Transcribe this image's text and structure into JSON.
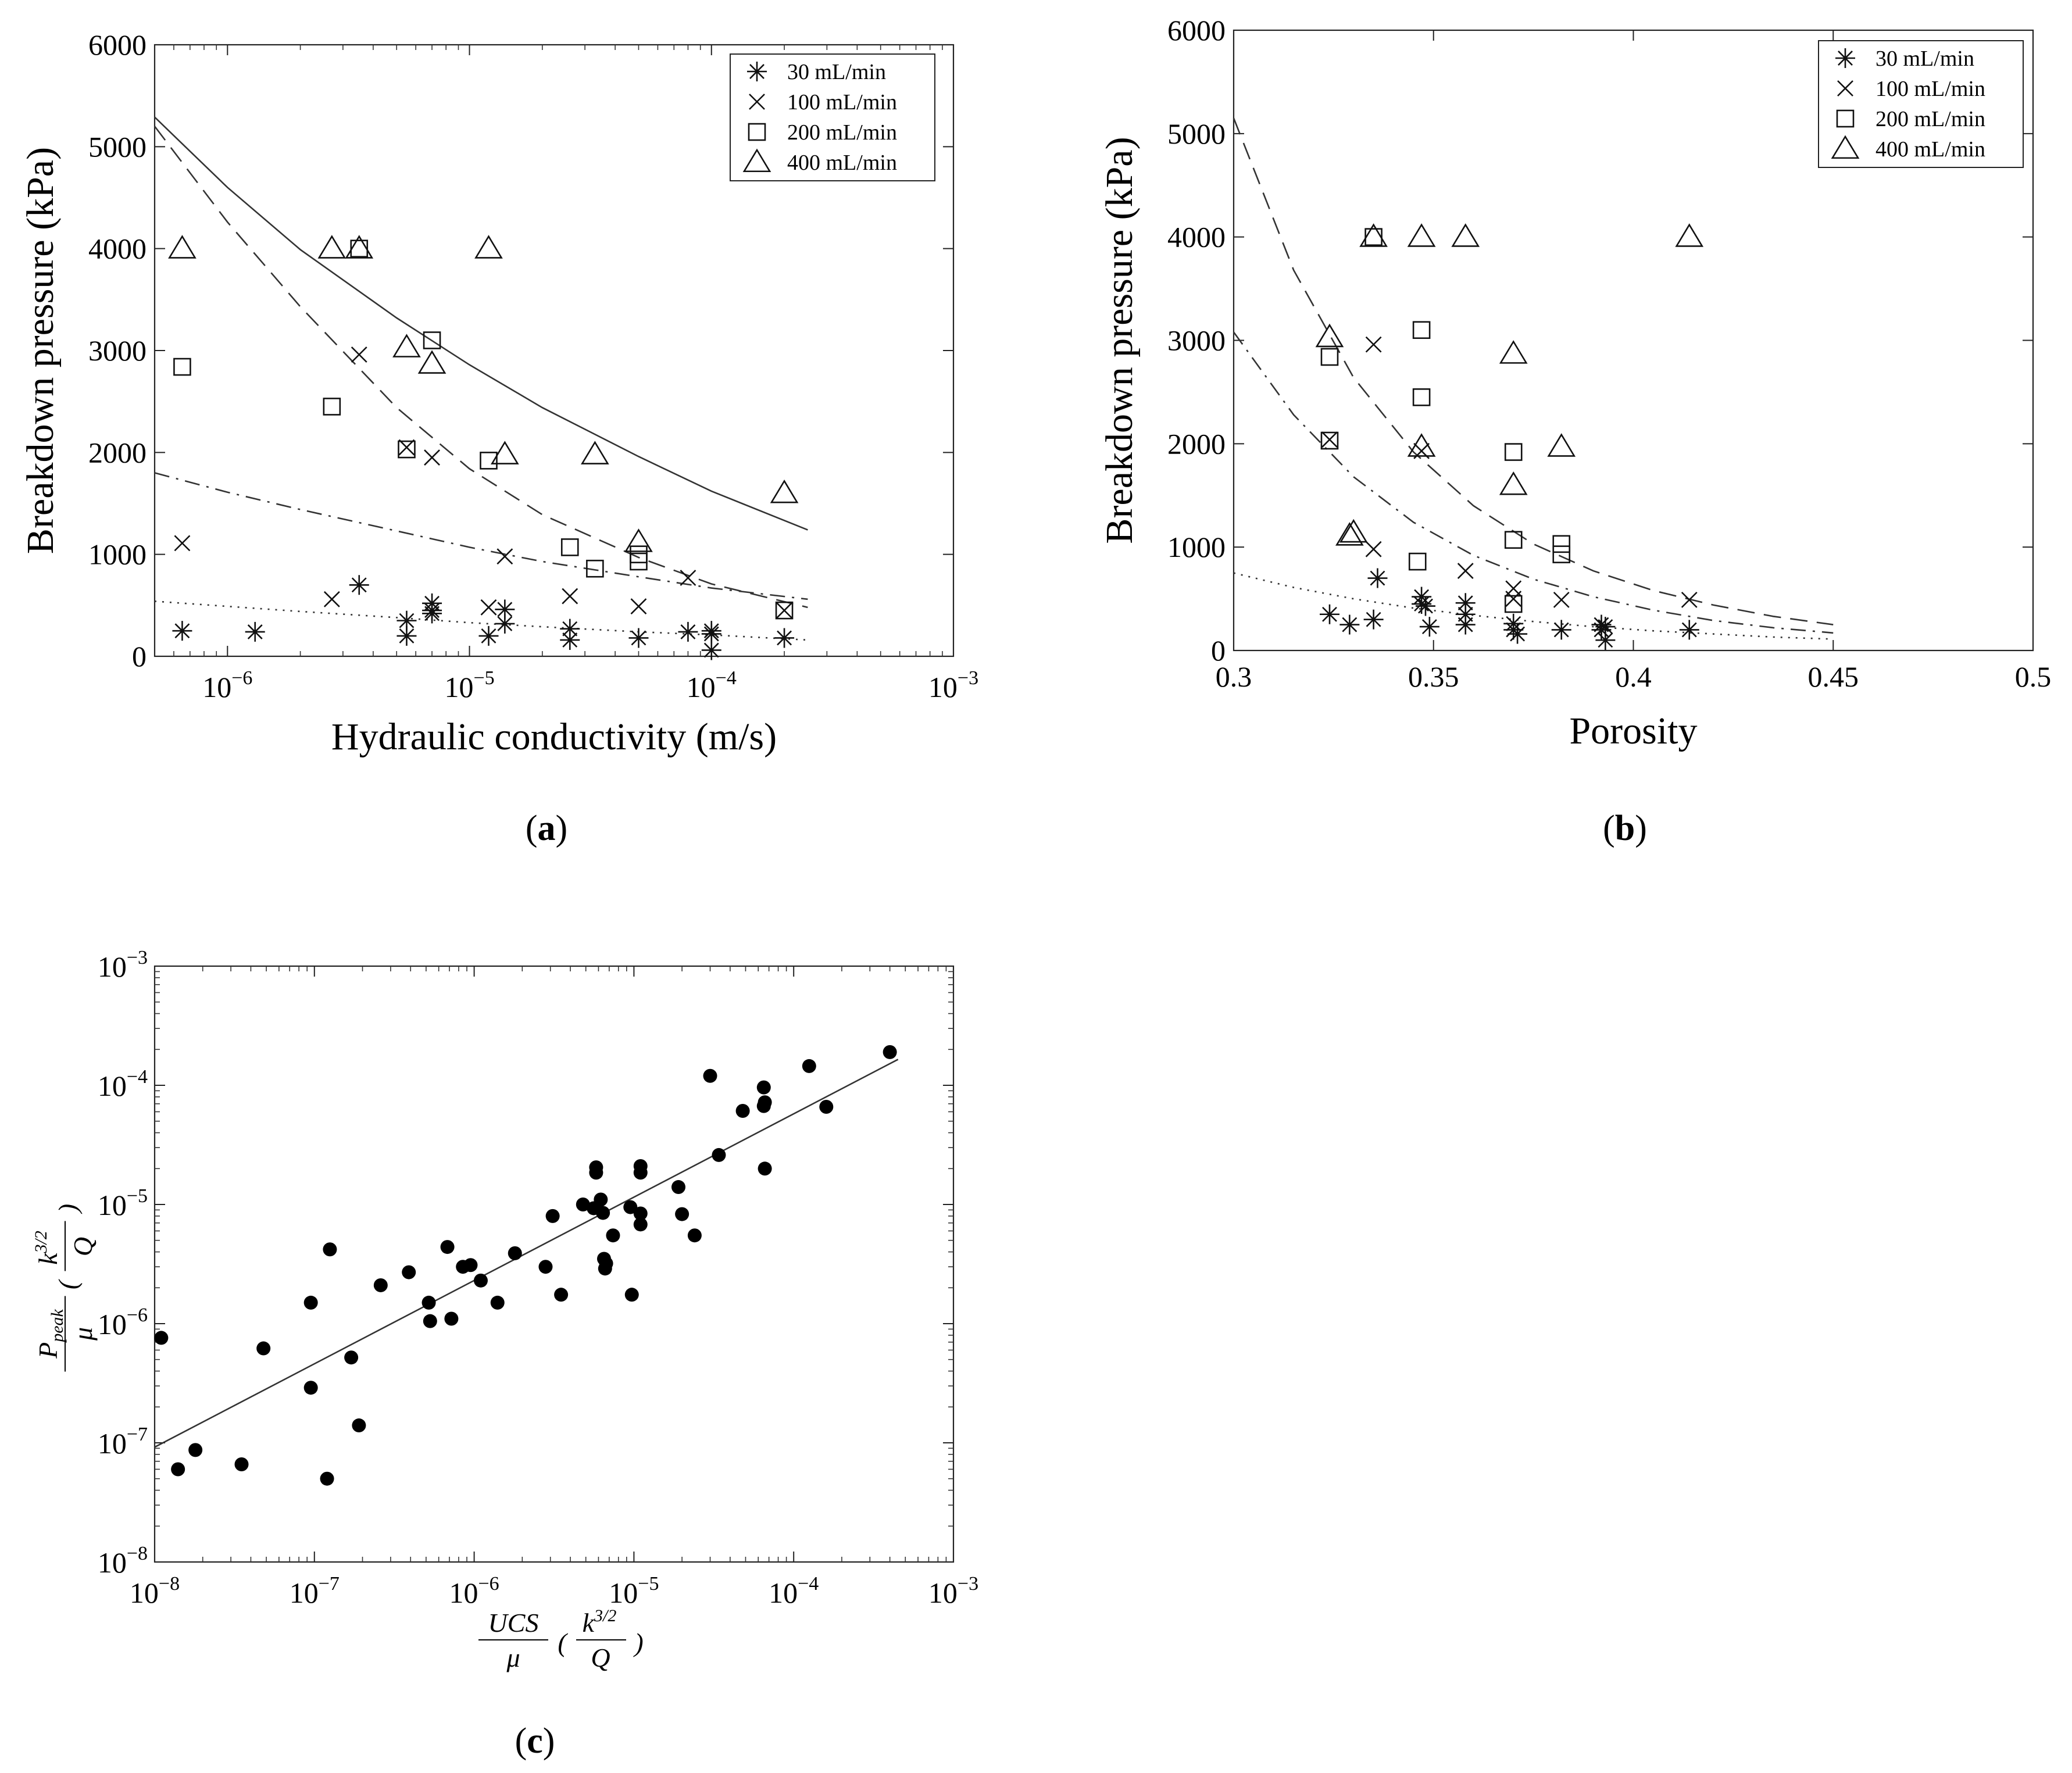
{
  "figure": {
    "panel_labels": {
      "a": "a",
      "b": "b",
      "c": "c"
    }
  },
  "chart_data": [
    {
      "id": "a",
      "type": "scatter",
      "xscale": "log",
      "xlim": [
        5e-07,
        0.001
      ],
      "ylim": [
        0,
        6000
      ],
      "xticks": [
        1e-06,
        1e-05,
        0.0001,
        0.001
      ],
      "xtick_labels": [
        {
          "base": "10",
          "exp": "−6"
        },
        {
          "base": "10",
          "exp": "−5"
        },
        {
          "base": "10",
          "exp": "−4"
        },
        {
          "base": "10",
          "exp": "−3"
        }
      ],
      "yticks": [
        0,
        1000,
        2000,
        3000,
        4000,
        5000,
        6000
      ],
      "ytick_labels": [
        "0",
        "1000",
        "2000",
        "3000",
        "4000",
        "5000",
        "6000"
      ],
      "xlabel": "Hydraulic conductivity (m/s)",
      "ylabel": "Breakdown pressure (kPa)",
      "legend_position": "top-right",
      "series": [
        {
          "name": "30 mL/min",
          "marker": "asterisk",
          "points": [
            [
              6.5e-07,
              250
            ],
            [
              1.3e-06,
              240
            ],
            [
              3.5e-06,
              700
            ],
            [
              5.5e-06,
              350
            ],
            [
              5.5e-06,
              200
            ],
            [
              7e-06,
              450
            ],
            [
              7e-06,
              520
            ],
            [
              7e-06,
              420
            ],
            [
              1.2e-05,
              200
            ],
            [
              1.4e-05,
              320
            ],
            [
              1.4e-05,
              460
            ],
            [
              2.6e-05,
              270
            ],
            [
              2.6e-05,
              160
            ],
            [
              5e-05,
              180
            ],
            [
              8e-05,
              240
            ],
            [
              0.0001,
              220
            ],
            [
              0.0001,
              250
            ],
            [
              0.0001,
              60
            ],
            [
              0.0002,
              180
            ]
          ]
        },
        {
          "name": "100 mL/min",
          "marker": "x",
          "points": [
            [
              6.5e-07,
              1110
            ],
            [
              2.7e-06,
              560
            ],
            [
              3.5e-06,
              2960
            ],
            [
              5.5e-06,
              2050
            ],
            [
              7e-06,
              1950
            ],
            [
              1.2e-05,
              480
            ],
            [
              1.4e-05,
              980
            ],
            [
              2.6e-05,
              590
            ],
            [
              5e-05,
              490
            ],
            [
              8e-05,
              770
            ],
            [
              0.0002,
              450
            ]
          ]
        },
        {
          "name": "200 mL/min",
          "marker": "square",
          "points": [
            [
              6.5e-07,
              2840
            ],
            [
              2.7e-06,
              2450
            ],
            [
              3.5e-06,
              4000
            ],
            [
              5.5e-06,
              2030
            ],
            [
              7e-06,
              3100
            ],
            [
              1.2e-05,
              1920
            ],
            [
              2.6e-05,
              1070
            ],
            [
              3.3e-05,
              860
            ],
            [
              5e-05,
              1000
            ],
            [
              5e-05,
              930
            ],
            [
              0.0002,
              450
            ]
          ]
        },
        {
          "name": "400 mL/min",
          "marker": "triangle",
          "points": [
            [
              6.5e-07,
              4000
            ],
            [
              2.7e-06,
              4000
            ],
            [
              3.5e-06,
              4000
            ],
            [
              5.5e-06,
              3030
            ],
            [
              7e-06,
              2870
            ],
            [
              1.2e-05,
              4000
            ],
            [
              1.4e-05,
              1980
            ],
            [
              3.3e-05,
              1980
            ],
            [
              5e-05,
              1120
            ],
            [
              0.0002,
              1600
            ]
          ]
        }
      ],
      "fits": [
        {
          "style": "solid",
          "x": [
            5e-07,
            1e-06,
            2e-06,
            5e-06,
            1e-05,
            2e-05,
            5e-05,
            0.0001,
            0.00025
          ],
          "y": [
            5290,
            4600,
            3990,
            3320,
            2860,
            2440,
            1960,
            1620,
            1240
          ]
        },
        {
          "style": "dashed",
          "x": [
            5e-07,
            1e-06,
            2e-06,
            5e-06,
            1e-05,
            2e-05,
            5e-05,
            0.0001,
            0.00025
          ],
          "y": [
            5200,
            4260,
            3430,
            2440,
            1840,
            1390,
            970,
            710,
            480
          ]
        },
        {
          "style": "dashdot",
          "x": [
            5e-07,
            1e-06,
            2e-06,
            5e-06,
            1e-05,
            2e-05,
            5e-05,
            0.0001,
            0.00025
          ],
          "y": [
            1800,
            1610,
            1440,
            1230,
            1070,
            930,
            780,
            670,
            560
          ]
        },
        {
          "style": "dotted",
          "x": [
            5e-07,
            1e-06,
            2e-06,
            5e-06,
            1e-05,
            2e-05,
            5e-05,
            0.0001,
            0.00025
          ],
          "y": [
            540,
            490,
            440,
            380,
            330,
            290,
            240,
            210,
            160
          ]
        }
      ]
    },
    {
      "id": "b",
      "type": "scatter",
      "xscale": "linear",
      "xlim": [
        0.3,
        0.5
      ],
      "ylim": [
        0,
        6000
      ],
      "xticks": [
        0.3,
        0.35,
        0.4,
        0.45,
        0.5
      ],
      "xtick_labels": [
        "0.3",
        "0.35",
        "0.4",
        "0.45",
        "0.5"
      ],
      "yticks": [
        0,
        1000,
        2000,
        3000,
        4000,
        5000,
        6000
      ],
      "ytick_labels": [
        "0",
        "1000",
        "2000",
        "3000",
        "4000",
        "5000",
        "6000"
      ],
      "xlabel": "Porosity",
      "ylabel": "Breakdown pressure (kPa)",
      "legend_position": "top-right",
      "series": [
        {
          "name": "30 mL/min",
          "marker": "asterisk",
          "points": [
            [
              0.324,
              350
            ],
            [
              0.329,
              250
            ],
            [
              0.335,
              300
            ],
            [
              0.336,
              700
            ],
            [
              0.347,
              450
            ],
            [
              0.347,
              520
            ],
            [
              0.348,
              430
            ],
            [
              0.349,
              230
            ],
            [
              0.358,
              250
            ],
            [
              0.358,
              350
            ],
            [
              0.358,
              460
            ],
            [
              0.37,
              200
            ],
            [
              0.37,
              260
            ],
            [
              0.371,
              160
            ],
            [
              0.382,
              200
            ],
            [
              0.392,
              200
            ],
            [
              0.392,
              250
            ],
            [
              0.393,
              100
            ],
            [
              0.393,
              230
            ],
            [
              0.414,
              200
            ]
          ]
        },
        {
          "name": "100 mL/min",
          "marker": "x",
          "points": [
            [
              0.324,
              2040
            ],
            [
              0.335,
              2960
            ],
            [
              0.335,
              980
            ],
            [
              0.347,
              1930
            ],
            [
              0.358,
              770
            ],
            [
              0.37,
              600
            ],
            [
              0.37,
              500
            ],
            [
              0.382,
              490
            ],
            [
              0.414,
              490
            ]
          ]
        },
        {
          "name": "200 mL/min",
          "marker": "square",
          "points": [
            [
              0.324,
              2840
            ],
            [
              0.324,
              2030
            ],
            [
              0.335,
              4000
            ],
            [
              0.346,
              860
            ],
            [
              0.347,
              2450
            ],
            [
              0.347,
              3100
            ],
            [
              0.37,
              1920
            ],
            [
              0.37,
              1070
            ],
            [
              0.37,
              450
            ],
            [
              0.382,
              930
            ],
            [
              0.382,
              1030
            ]
          ]
        },
        {
          "name": "400 mL/min",
          "marker": "triangle",
          "points": [
            [
              0.324,
              3030
            ],
            [
              0.329,
              1110
            ],
            [
              0.33,
              1140
            ],
            [
              0.335,
              4000
            ],
            [
              0.347,
              4000
            ],
            [
              0.347,
              1970
            ],
            [
              0.358,
              4000
            ],
            [
              0.37,
              2870
            ],
            [
              0.37,
              1600
            ],
            [
              0.382,
              1970
            ],
            [
              0.414,
              4000
            ]
          ]
        }
      ],
      "fits": [
        {
          "style": "dashed",
          "x": [
            0.3,
            0.315,
            0.33,
            0.345,
            0.36,
            0.375,
            0.39,
            0.405,
            0.42,
            0.435,
            0.45
          ],
          "y": [
            5150,
            3680,
            2640,
            1920,
            1400,
            1030,
            770,
            580,
            440,
            330,
            250
          ]
        },
        {
          "style": "dashdot",
          "x": [
            0.3,
            0.315,
            0.33,
            0.345,
            0.36,
            0.375,
            0.39,
            0.405,
            0.42,
            0.435,
            0.45
          ],
          "y": [
            3080,
            2280,
            1680,
            1240,
            920,
            690,
            520,
            390,
            290,
            220,
            170
          ]
        },
        {
          "style": "dotted",
          "x": [
            0.3,
            0.315,
            0.33,
            0.345,
            0.36,
            0.375,
            0.39,
            0.405,
            0.42,
            0.435,
            0.45
          ],
          "y": [
            750,
            610,
            500,
            410,
            340,
            280,
            230,
            190,
            160,
            130,
            110
          ]
        }
      ]
    },
    {
      "id": "c",
      "type": "scatter",
      "xscale": "log",
      "yscale": "log",
      "xlim": [
        1e-08,
        0.001
      ],
      "ylim": [
        1e-08,
        0.001
      ],
      "xticks": [
        1e-08,
        1e-07,
        1e-06,
        1e-05,
        0.0001,
        0.001
      ],
      "xtick_labels": [
        {
          "base": "10",
          "exp": "−8"
        },
        {
          "base": "10",
          "exp": "−7"
        },
        {
          "base": "10",
          "exp": "−6"
        },
        {
          "base": "10",
          "exp": "−5"
        },
        {
          "base": "10",
          "exp": "−4"
        },
        {
          "base": "10",
          "exp": "−3"
        }
      ],
      "yticks": [
        1e-08,
        1e-07,
        1e-06,
        1e-05,
        0.0001,
        0.001
      ],
      "ytick_labels": [
        {
          "base": "10",
          "exp": "−8"
        },
        {
          "base": "10",
          "exp": "−7"
        },
        {
          "base": "10",
          "exp": "−6"
        },
        {
          "base": "10",
          "exp": "−5"
        },
        {
          "base": "10",
          "exp": "−4"
        },
        {
          "base": "10",
          "exp": "−3"
        }
      ],
      "xlabel": {
        "num": "UCS",
        "den": "μ",
        "pnum": "k",
        "pexp": "3/2",
        "pden": "Q"
      },
      "ylabel": {
        "num": "P",
        "numsub": "peak",
        "den": "μ",
        "pnum": "k",
        "pexp": "3/2",
        "pden": "Q"
      },
      "points": [
        [
          1.1e-08,
          7.6e-07
        ],
        [
          1.4e-08,
          6e-08
        ],
        [
          1.8e-08,
          8.7e-08
        ],
        [
          3.5e-08,
          6.6e-08
        ],
        [
          4.8e-08,
          6.2e-07
        ],
        [
          9.5e-08,
          1.5e-06
        ],
        [
          9.5e-08,
          2.9e-07
        ],
        [
          1.2e-07,
          5e-08
        ],
        [
          1.25e-07,
          4.2e-06
        ],
        [
          1.7e-07,
          5.2e-07
        ],
        [
          1.9e-07,
          1.4e-07
        ],
        [
          2.6e-07,
          2.1e-06
        ],
        [
          3.9e-07,
          2.7e-06
        ],
        [
          5.2e-07,
          1.5e-06
        ],
        [
          5.3e-07,
          1.05e-06
        ],
        [
          6.8e-07,
          4.4e-06
        ],
        [
          7.2e-07,
          1.1e-06
        ],
        [
          8.5e-07,
          3e-06
        ],
        [
          9.5e-07,
          3.1e-06
        ],
        [
          1.1e-06,
          2.3e-06
        ],
        [
          1.4e-06,
          1.5e-06
        ],
        [
          1.8e-06,
          3.9e-06
        ],
        [
          2.8e-06,
          3e-06
        ],
        [
          3.1e-06,
          8e-06
        ],
        [
          3.5e-06,
          1.75e-06
        ],
        [
          4.8e-06,
          1e-05
        ],
        [
          5.6e-06,
          9.3e-06
        ],
        [
          5.8e-06,
          2.05e-05
        ],
        [
          5.8e-06,
          1.85e-05
        ],
        [
          6.2e-06,
          1.1e-05
        ],
        [
          6.4e-06,
          8.5e-06
        ],
        [
          6.5e-06,
          3.5e-06
        ],
        [
          6.7e-06,
          3.2e-06
        ],
        [
          6.6e-06,
          2.9e-06
        ],
        [
          7.4e-06,
          5.5e-06
        ],
        [
          9.5e-06,
          9.5e-06
        ],
        [
          9.7e-06,
          1.75e-06
        ],
        [
          1.1e-05,
          2.1e-05
        ],
        [
          1.1e-05,
          1.85e-05
        ],
        [
          1.1e-05,
          8.4e-06
        ],
        [
          1.1e-05,
          6.8e-06
        ],
        [
          1.9e-05,
          1.4e-05
        ],
        [
          2e-05,
          8.3e-06
        ],
        [
          2.4e-05,
          5.5e-06
        ],
        [
          3e-05,
          0.00012
        ],
        [
          3.4e-05,
          2.6e-05
        ],
        [
          4.8e-05,
          6.1e-05
        ],
        [
          6.5e-05,
          6.7e-05
        ],
        [
          6.5e-05,
          9.6e-05
        ],
        [
          6.6e-05,
          7.2e-05
        ],
        [
          6.6e-05,
          2e-05
        ],
        [
          0.000125,
          0.000145
        ],
        [
          0.00016,
          6.6e-05
        ],
        [
          0.0004,
          0.00019
        ]
      ],
      "fit": {
        "style": "solid",
        "x": [
          1e-08,
          0.00045
        ],
        "y": [
          9.2e-08,
          0.000165
        ]
      }
    }
  ]
}
